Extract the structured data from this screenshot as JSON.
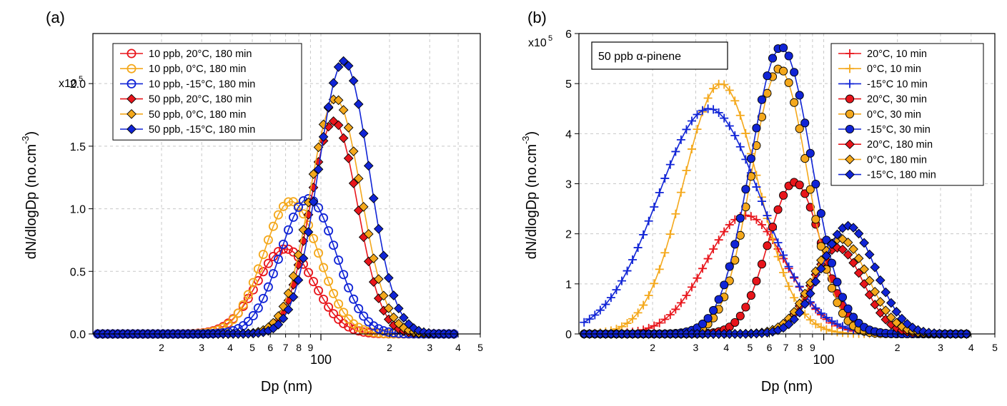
{
  "figure": {
    "panel_a_label": "(a)",
    "panel_b_label": "(b)"
  },
  "chart_data": [
    {
      "type": "line",
      "panel": "(a)",
      "xlabel": "Dp (nm)",
      "ylabel": "dN/dlogDp (no.cm",
      "ylabel_sup": "-3",
      "ylabel_close": ")",
      "xscale": "log",
      "xlim": [
        10,
        500
      ],
      "ylim": [
        0,
        240000
      ],
      "y_multiplier": "x10",
      "y_multiplier_exp": "5",
      "y_ticks": [
        {
          "v": 0,
          "label": "0.0"
        },
        {
          "v": 50000,
          "label": "0.5"
        },
        {
          "v": 100000,
          "label": "1.0"
        },
        {
          "v": 150000,
          "label": "1.5"
        },
        {
          "v": 200000,
          "label": "2.0"
        }
      ],
      "x_ticks_minor": [
        {
          "v": 20,
          "label": "2"
        },
        {
          "v": 30,
          "label": "3"
        },
        {
          "v": 40,
          "label": "4"
        },
        {
          "v": 50,
          "label": "5"
        },
        {
          "v": 60,
          "label": "6"
        },
        {
          "v": 70,
          "label": "7"
        },
        {
          "v": 80,
          "label": "8"
        },
        {
          "v": 90,
          "label": "9"
        },
        {
          "v": 200,
          "label": "2"
        },
        {
          "v": 300,
          "label": "3"
        },
        {
          "v": 400,
          "label": "4"
        },
        {
          "v": 500,
          "label": "5"
        }
      ],
      "x_ticks_major": [
        {
          "v": 100,
          "label": "100"
        }
      ],
      "legend_position": "top-left",
      "series": [
        {
          "name": "10 ppb,   20°C,  180 min",
          "color": "#e8151b",
          "marker": "circle-open",
          "mu": 70,
          "sigma": 1.33,
          "peak": 68000
        },
        {
          "name": "10 ppb,     0°C,  180 min",
          "color": "#f4a81b",
          "marker": "circle-open",
          "mu": 74,
          "sigma": 1.32,
          "peak": 106000
        },
        {
          "name": "10 ppb,  -15°C,  180 min",
          "color": "#1024d6",
          "marker": "circle-open",
          "mu": 88,
          "sigma": 1.32,
          "peak": 108000
        },
        {
          "name": "50 ppb,   20°C,  180 min",
          "color": "#e8151b",
          "marker": "diamond",
          "mu": 114,
          "sigma": 1.27,
          "peak": 170000
        },
        {
          "name": "50 ppb,     0°C,  180 min",
          "color": "#f4a81b",
          "marker": "diamond",
          "mu": 116,
          "sigma": 1.29,
          "peak": 188000
        },
        {
          "name": "50 ppb,  -15°C,  180 min",
          "color": "#1024d6",
          "marker": "diamond",
          "mu": 126,
          "sigma": 1.29,
          "peak": 218000
        }
      ]
    },
    {
      "type": "line",
      "panel": "(b)",
      "xlabel": "Dp (nm)",
      "ylabel": "dN/dlogDp (no.cm",
      "ylabel_sup": "-3",
      "ylabel_close": ")",
      "xscale": "log",
      "xlim": [
        10,
        500
      ],
      "ylim": [
        0,
        600000
      ],
      "y_multiplier": "x10",
      "y_multiplier_exp": "5",
      "y_ticks": [
        {
          "v": 0,
          "label": "0"
        },
        {
          "v": 100000,
          "label": "1"
        },
        {
          "v": 200000,
          "label": "2"
        },
        {
          "v": 300000,
          "label": "3"
        },
        {
          "v": 400000,
          "label": "4"
        },
        {
          "v": 500000,
          "label": "5"
        },
        {
          "v": 600000,
          "label": "6"
        }
      ],
      "x_ticks_minor": [
        {
          "v": 20,
          "label": "2"
        },
        {
          "v": 30,
          "label": "3"
        },
        {
          "v": 40,
          "label": "4"
        },
        {
          "v": 50,
          "label": "5"
        },
        {
          "v": 60,
          "label": "6"
        },
        {
          "v": 70,
          "label": "7"
        },
        {
          "v": 80,
          "label": "8"
        },
        {
          "v": 90,
          "label": "9"
        },
        {
          "v": 200,
          "label": "2"
        },
        {
          "v": 300,
          "label": "3"
        },
        {
          "v": 400,
          "label": "4"
        },
        {
          "v": 500,
          "label": "5"
        }
      ],
      "x_ticks_major": [
        {
          "v": 100,
          "label": "100"
        }
      ],
      "annotation": "50 ppb α-pinene",
      "legend_position": "top-right",
      "series": [
        {
          "name": "20°C,    10 min",
          "color": "#e8151b",
          "marker": "plus",
          "mu": 48,
          "sigma": 1.45,
          "peak": 237000
        },
        {
          "name": "0°C,     10 min",
          "color": "#f4a81b",
          "marker": "plus",
          "mu": 38,
          "sigma": 1.42,
          "peak": 500000
        },
        {
          "name": "-15°C    10 min",
          "color": "#1024d6",
          "marker": "plus",
          "mu": 34,
          "sigma": 1.62,
          "peak": 450000
        },
        {
          "name": "20°C,    30 min",
          "color": "#e8151b",
          "marker": "circle",
          "mu": 76,
          "sigma": 1.28,
          "peak": 303000
        },
        {
          "name": "0°C,      30 min",
          "color": "#f4a81b",
          "marker": "circle",
          "mu": 66,
          "sigma": 1.3,
          "peak": 530000
        },
        {
          "name": "-15°C,   30 min",
          "color": "#1024d6",
          "marker": "circle",
          "mu": 67,
          "sigma": 1.33,
          "peak": 573000
        },
        {
          "name": "20°C, 180 min",
          "color": "#e8151b",
          "marker": "diamond",
          "mu": 114,
          "sigma": 1.27,
          "peak": 172000
        },
        {
          "name": "0°C,   180 min",
          "color": "#f4a81b",
          "marker": "diamond",
          "mu": 117,
          "sigma": 1.29,
          "peak": 190000
        },
        {
          "name": "-15°C, 180 min",
          "color": "#1024d6",
          "marker": "diamond",
          "mu": 126,
          "sigma": 1.29,
          "peak": 216000
        }
      ]
    }
  ]
}
